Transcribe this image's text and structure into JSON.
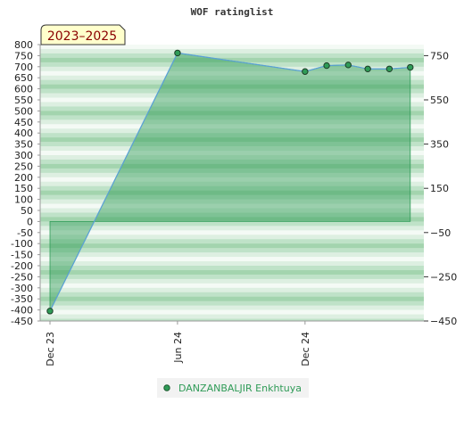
{
  "chart_data": {
    "type": "area",
    "title": "WOF ratinglist",
    "badge": "2023–2025",
    "xlabel": "",
    "ylabel": "",
    "left_axis": {
      "ylim": [
        -450,
        800
      ],
      "ticks": [
        800,
        750,
        700,
        650,
        600,
        550,
        500,
        450,
        400,
        350,
        300,
        250,
        200,
        150,
        100,
        50,
        0,
        -50,
        -100,
        -150,
        -200,
        -250,
        -300,
        -350,
        -400,
        -450
      ]
    },
    "right_axis": {
      "ticks": [
        750,
        550,
        350,
        150,
        -50,
        -250,
        -450
      ]
    },
    "x_ticks": [
      {
        "label": "Dec 23",
        "x": "2023-12-01"
      },
      {
        "label": "Jun 24",
        "x": "2024-06-01"
      },
      {
        "label": "Dec 24",
        "x": "2024-12-01"
      }
    ],
    "x_range": [
      "2023-12-01",
      "2025-06-01"
    ],
    "series": [
      {
        "name": "DANZANBALJIR Enkhtuya",
        "color": "#2f9b57",
        "points": [
          {
            "x": "2023-12-01",
            "y": -405
          },
          {
            "x": "2024-06-01",
            "y": 762
          },
          {
            "x": "2024-12-01",
            "y": 678
          },
          {
            "x": "2025-01-01",
            "y": 705
          },
          {
            "x": "2025-02-01",
            "y": 708
          },
          {
            "x": "2025-03-01",
            "y": 690
          },
          {
            "x": "2025-04-01",
            "y": 690
          },
          {
            "x": "2025-05-01",
            "y": 697
          }
        ]
      }
    ],
    "grid": true,
    "legend": "bottom-center"
  }
}
